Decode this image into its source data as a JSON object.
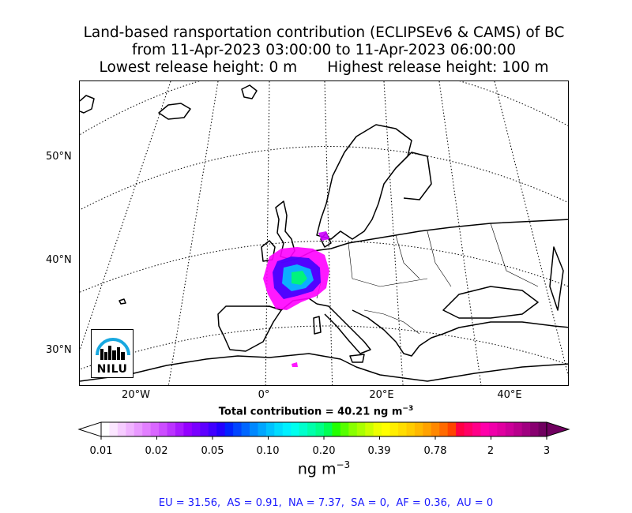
{
  "title": {
    "line1": "Land-based ransportation contribution (ECLIPSEv6 & CAMS) of BC",
    "line2": "from 11-Apr-2023 03:00:00 to 11-Apr-2023 06:00:00",
    "lowest": "Lowest release height: 0 m",
    "highest": "Highest release height: 100 m"
  },
  "map": {
    "lat_labels": [
      "50°N",
      "40°N",
      "30°N"
    ],
    "lon_labels": [
      "20°W",
      "0°",
      "20°E",
      "40°E"
    ],
    "logo_text": "NILU",
    "plume_colors": [
      "#ff00ff",
      "#cc00ff",
      "#8800ff",
      "#3300ff",
      "#0088ff",
      "#00ccff",
      "#00ffcc",
      "#00ff66"
    ]
  },
  "summary": {
    "total_prefix": "Total contribution = 40.21 ng m",
    "total_exp": "−3"
  },
  "colorbar": {
    "tick_labels": [
      "0.01",
      "0.02",
      "0.05",
      "0.10",
      "0.20",
      "0.39",
      "0.78",
      "2",
      "3"
    ],
    "units_prefix": "ng m",
    "units_exp": "−3",
    "colors": [
      "#ffffff",
      "#fbe6ff",
      "#f6ccff",
      "#f0b3ff",
      "#e999ff",
      "#e27fff",
      "#d966ff",
      "#cc4cff",
      "#bb33ff",
      "#a819ff",
      "#9400ff",
      "#7a00ff",
      "#5e00ff",
      "#4000ff",
      "#2200ff",
      "#0022ff",
      "#0044ff",
      "#0066ff",
      "#0088ff",
      "#00a6ff",
      "#00c2ff",
      "#00dcff",
      "#00f0ff",
      "#00ffee",
      "#00ffcc",
      "#00ffaa",
      "#00ff88",
      "#00ff55",
      "#22ff00",
      "#55ff00",
      "#88ff00",
      "#aaff00",
      "#ccff00",
      "#eeff00",
      "#ffff00",
      "#ffee00",
      "#ffdd00",
      "#ffcc00",
      "#ffb800",
      "#ffa200",
      "#ff8800",
      "#ff6a00",
      "#ff4400",
      "#ff0044",
      "#ff0066",
      "#ff0088",
      "#ff00aa",
      "#f000aa",
      "#e000a0",
      "#cc0099",
      "#b8008c",
      "#a00080",
      "#880070",
      "#700060"
    ]
  },
  "regions": "EU = 31.56,  AS = 0.91,  NA = 7.37,  SA = 0,  AF = 0.36,  AU = 0"
}
